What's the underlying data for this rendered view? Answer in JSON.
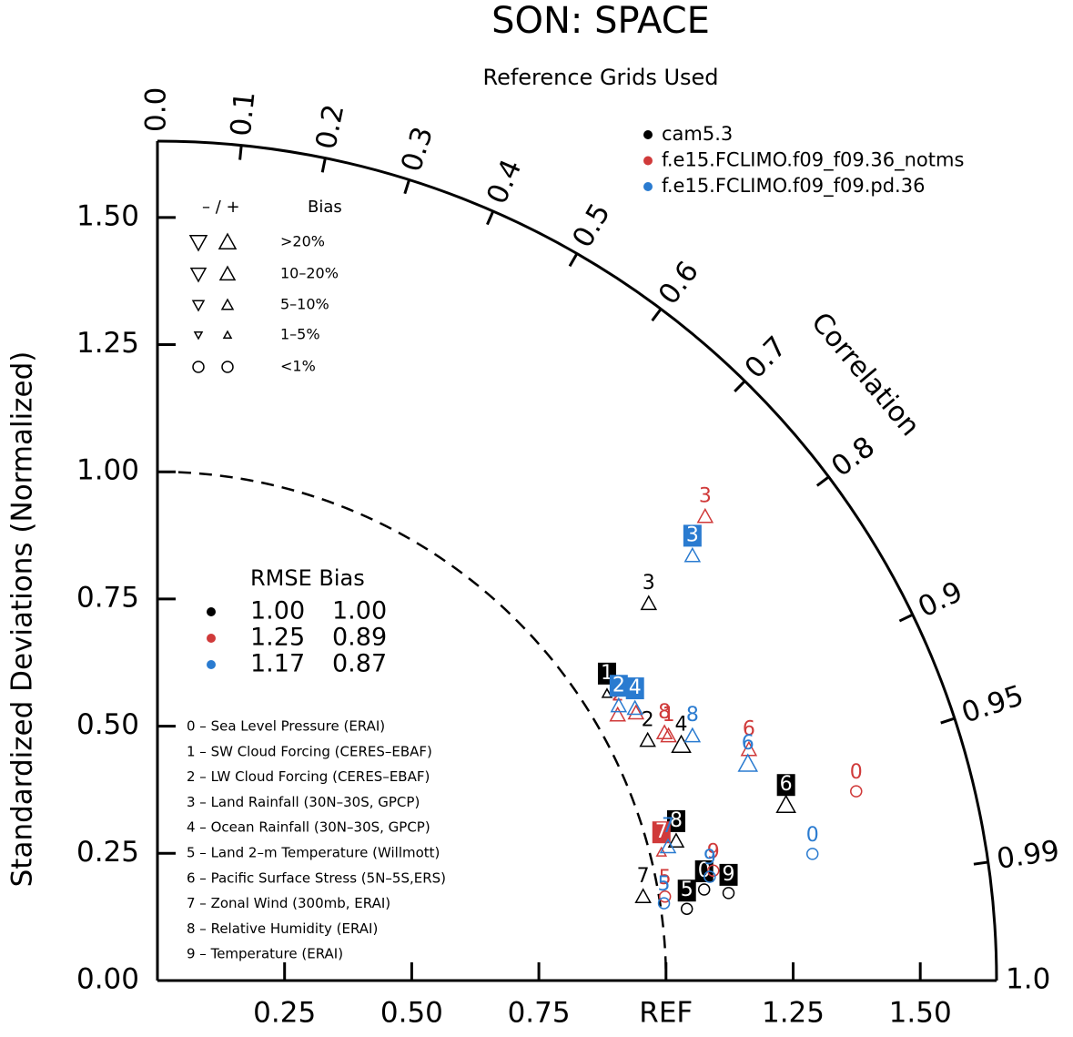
{
  "chart_data": {
    "type": "taylor",
    "title": "SON: SPACE",
    "subtitle": "Reference Grids Used",
    "y_label": "Standardized Deviations (Normalized)",
    "correlation_label": "Correlation",
    "xlim": [
      0,
      1.65
    ],
    "ylim": [
      0,
      1.65
    ],
    "ref_std": 1,
    "xticks": [
      {
        "value": 0.25,
        "label": "0.25"
      },
      {
        "value": 0.5,
        "label": "0.50"
      },
      {
        "value": 0.75,
        "label": "0.75"
      },
      {
        "value": 1,
        "label": "REF"
      },
      {
        "value": 1.25,
        "label": "1.25"
      },
      {
        "value": 1.5,
        "label": "1.50"
      }
    ],
    "yticks": [
      {
        "value": 0,
        "label": "0.00"
      },
      {
        "value": 0.25,
        "label": "0.25"
      },
      {
        "value": 0.5,
        "label": "0.50"
      },
      {
        "value": 0.75,
        "label": "0.75"
      },
      {
        "value": 1,
        "label": "1.00"
      },
      {
        "value": 1.25,
        "label": "1.25"
      },
      {
        "value": 1.5,
        "label": "1.50"
      }
    ],
    "correlation_ticks": [
      {
        "value": 0,
        "label": "0.0"
      },
      0.1,
      0.2,
      0.3,
      0.4,
      0.5,
      0.6,
      0.7,
      0.8,
      0.9,
      0.95,
      0.99,
      {
        "value": 1,
        "label": "1.0"
      }
    ],
    "series": [
      {
        "name": "cam5.3",
        "color": "#000000",
        "points": [
          {
            "case": "1",
            "x": 0.884,
            "y": 0.564,
            "marker": "triangle-small",
            "boxed": true
          },
          {
            "case": "3",
            "x": 0.966,
            "y": 0.741,
            "marker": "triangle",
            "boxed": false
          },
          {
            "case": "2",
            "x": 0.964,
            "y": 0.472,
            "marker": "triangle",
            "boxed": false
          },
          {
            "case": "4",
            "x": 1.03,
            "y": 0.463,
            "marker": "triangle-large",
            "boxed": false
          },
          {
            "case": "6",
            "x": 1.236,
            "y": 0.345,
            "marker": "triangle-large",
            "boxed": true
          },
          {
            "case": "8",
            "x": 1.02,
            "y": 0.274,
            "marker": "triangle",
            "boxed": true
          },
          {
            "case": "7",
            "x": 0.955,
            "y": 0.165,
            "marker": "triangle",
            "boxed": false
          },
          {
            "case": "5",
            "x": 1.041,
            "y": 0.141,
            "marker": "circle",
            "boxed": true
          },
          {
            "case": "0",
            "x": 1.075,
            "y": 0.179,
            "marker": "circle",
            "boxed": true
          },
          {
            "case": "9",
            "x": 1.123,
            "y": 0.172,
            "marker": "circle",
            "boxed": true
          }
        ]
      },
      {
        "name": "f.e15.FCLIMO.f09_f09.36_notms",
        "color": "#d03a3a",
        "points": [
          {
            "case": "3",
            "x": 1.077,
            "y": 0.912,
            "marker": "triangle",
            "boxed": false
          },
          {
            "case": "2",
            "x": 0.905,
            "y": 0.522,
            "marker": "triangle",
            "boxed": false
          },
          {
            "case": "4",
            "x": 0.941,
            "y": 0.526,
            "marker": "triangle",
            "boxed": false
          },
          {
            "case": "8",
            "x": 0.997,
            "y": 0.487,
            "marker": "triangle",
            "boxed": false
          },
          {
            "case": "1",
            "x": 1.005,
            "y": 0.481,
            "marker": "triangle",
            "boxed": false
          },
          {
            "case": "6",
            "x": 1.163,
            "y": 0.454,
            "marker": "triangle",
            "boxed": false
          },
          {
            "case": "0",
            "x": 1.374,
            "y": 0.372,
            "marker": "circle",
            "boxed": false
          },
          {
            "case": "7",
            "x": 0.991,
            "y": 0.252,
            "marker": "triangle-small",
            "boxed": true
          },
          {
            "case": "9",
            "x": 1.093,
            "y": 0.216,
            "marker": "circle",
            "boxed": false
          },
          {
            "case": "5",
            "x": 0.998,
            "y": 0.165,
            "marker": "circle",
            "boxed": false
          }
        ]
      },
      {
        "name": "f.e15.FCLIMO.f09_f09.pd.36",
        "color": "#2a7bd0",
        "points": [
          {
            "case": "3",
            "x": 1.052,
            "y": 0.835,
            "marker": "triangle",
            "boxed": true
          },
          {
            "case": "2",
            "x": 0.907,
            "y": 0.54,
            "marker": "triangle",
            "boxed": true
          },
          {
            "case": "4",
            "x": 0.939,
            "y": 0.535,
            "marker": "triangle",
            "boxed": true
          },
          {
            "case": "8",
            "x": 1.052,
            "y": 0.481,
            "marker": "triangle",
            "boxed": false
          },
          {
            "case": "6",
            "x": 1.161,
            "y": 0.426,
            "marker": "triangle-large",
            "boxed": false
          },
          {
            "case": "0",
            "x": 1.288,
            "y": 0.249,
            "marker": "circle",
            "boxed": false
          },
          {
            "case": "7",
            "x": 1.004,
            "y": 0.263,
            "marker": "triangle",
            "boxed": false
          },
          {
            "case": "9",
            "x": 1.086,
            "y": 0.204,
            "marker": "circle",
            "boxed": false
          },
          {
            "case": "5",
            "x": 0.996,
            "y": 0.152,
            "marker": "circle",
            "boxed": false
          }
        ]
      }
    ],
    "stats_header": "RMSE Bias",
    "stats": [
      [
        "1.00",
        "1.00"
      ],
      [
        "1.25",
        "0.89"
      ],
      [
        "1.17",
        "0.87"
      ]
    ],
    "bias_legend": {
      "signs": "– / +",
      "header": "Bias",
      "rows": [
        ">20%",
        "10–20%",
        "5–10%",
        "1–5%",
        "<1%"
      ]
    },
    "cases": [
      "0 – Sea Level Pressure (ERAI)",
      "1 – SW Cloud Forcing (CERES–EBAF)",
      "2 – LW Cloud Forcing (CERES–EBAF)",
      "3 – Land Rainfall (30N–30S, GPCP)",
      "4 – Ocean Rainfall (30N–30S, GPCP)",
      "5 – Land 2–m Temperature (Willmott)",
      "6 – Pacific Surface Stress (5N–5S,ERS)",
      "7 – Zonal Wind (300mb, ERAI)",
      "8 – Relative Humidity (ERAI)",
      "9 – Temperature (ERAI)"
    ]
  }
}
